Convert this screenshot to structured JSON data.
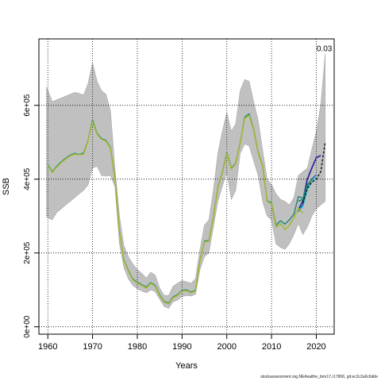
{
  "chart_data": {
    "type": "line",
    "xlabel": "Years",
    "ylabel": "SSB",
    "xlim": [
      1958,
      2024
    ],
    "ylim": [
      -20000,
      780000
    ],
    "x_ticks": [
      1960,
      1970,
      1980,
      1990,
      2000,
      2010,
      2020
    ],
    "y_ticks": [
      {
        "value": 0,
        "label": "0e+00"
      },
      {
        "value": 200000,
        "label": "2e+05"
      },
      {
        "value": 400000,
        "label": "4e+05"
      },
      {
        "value": 600000,
        "label": "6e+05"
      }
    ],
    "grid": true,
    "annotation": {
      "x": 2021.8,
      "y": 755000,
      "text": "0.03"
    },
    "band": {
      "x": [
        1959.7,
        1960,
        1961,
        1962,
        1963,
        1964,
        1965,
        1966,
        1967,
        1968,
        1969,
        1970,
        1971,
        1972,
        1973,
        1974,
        1975,
        1976,
        1977,
        1978,
        1979,
        1980,
        1981,
        1982,
        1983,
        1984,
        1985,
        1986,
        1987,
        1988,
        1989,
        1990,
        1991,
        1992,
        1993,
        1994,
        1995,
        1996,
        1997,
        1998,
        1999,
        2000,
        2001,
        2002,
        2003,
        2004,
        2005,
        2006,
        2007,
        2008,
        2009,
        2010,
        2011,
        2012,
        2013,
        2014,
        2015,
        2016,
        2017,
        2018,
        2019,
        2020,
        2021,
        2022
      ],
      "upper": [
        650000,
        640000,
        610000,
        615000,
        620000,
        625000,
        630000,
        635000,
        632000,
        628000,
        660000,
        715000,
        665000,
        640000,
        630000,
        585000,
        430000,
        300000,
        220000,
        190000,
        170000,
        155000,
        145000,
        132000,
        148000,
        140000,
        105000,
        85000,
        85000,
        110000,
        118000,
        125000,
        122000,
        118000,
        130000,
        210000,
        275000,
        290000,
        370000,
        470000,
        530000,
        580000,
        530000,
        550000,
        640000,
        670000,
        665000,
        610000,
        560000,
        480000,
        400000,
        385000,
        360000,
        345000,
        340000,
        330000,
        350000,
        410000,
        420000,
        430000,
        480000,
        530000,
        600000,
        740000
      ],
      "lower": [
        300000,
        295000,
        290000,
        310000,
        320000,
        330000,
        340000,
        350000,
        360000,
        370000,
        385000,
        430000,
        435000,
        410000,
        408000,
        410000,
        380000,
        225000,
        160000,
        130000,
        112000,
        103000,
        97000,
        92000,
        100000,
        95000,
        75000,
        55000,
        50000,
        68000,
        72000,
        82000,
        85000,
        83000,
        88000,
        155000,
        190000,
        200000,
        270000,
        340000,
        380000,
        420000,
        345000,
        370000,
        470000,
        495000,
        490000,
        450000,
        410000,
        340000,
        300000,
        290000,
        225000,
        215000,
        210000,
        225000,
        250000,
        280000,
        250000,
        270000,
        300000,
        320000,
        330000,
        340000
      ]
    },
    "series": [
      {
        "color": "#a9cbd1",
        "width": 1.4,
        "x": [
          1960,
          1961,
          1962,
          1963,
          1964,
          1965,
          1966,
          1967,
          1968,
          1969,
          1970,
          1971,
          1972,
          1973,
          1974,
          1975,
          1976,
          1977,
          1978,
          1979,
          1980,
          1981,
          1982,
          1983,
          1984,
          1985,
          1986,
          1987,
          1988,
          1989,
          1990,
          1991,
          1992,
          1993,
          1994,
          1995,
          1996,
          1997,
          1998,
          1999,
          2000,
          2001,
          2002,
          2003,
          2004,
          2005,
          2006,
          2007,
          2008,
          2009,
          2010,
          2011,
          2012,
          2013,
          2014,
          2015,
          2016,
          2017
        ],
        "y": [
          443000,
          423000,
          438000,
          450000,
          458000,
          466000,
          471000,
          470000,
          473000,
          510000,
          562000,
          528000,
          512000,
          507000,
          488000,
          405000,
          260000,
          184000,
          155000,
          131000,
          122000,
          115000,
          109000,
          122000,
          114000,
          87000,
          70000,
          65000,
          82000,
          88000,
          100000,
          101000,
          95000,
          100000,
          182000,
          234000,
          236000,
          300000,
          380000,
          420000,
          475000,
          432000,
          445000,
          500000,
          571000,
          578000,
          538000,
          475000,
          440000,
          343000,
          337000,
          277000,
          289000,
          280000,
          292000,
          307000,
          350000,
          345000
        ]
      },
      {
        "color": "#2a7f6e",
        "width": 1.4,
        "x": [
          1960,
          1961,
          1962,
          1963,
          1964,
          1965,
          1966,
          1967,
          1968,
          1969,
          1970,
          1971,
          1972,
          1973,
          1974,
          1975,
          1976,
          1977,
          1978,
          1979,
          1980,
          1981,
          1982,
          1983,
          1984,
          1985,
          1986,
          1987,
          1988,
          1989,
          1990,
          1991,
          1992,
          1993,
          1994,
          1995,
          1996,
          1997,
          1998,
          1999,
          2000,
          2001,
          2002,
          2003,
          2004,
          2005,
          2006,
          2007,
          2008,
          2009,
          2010,
          2011,
          2012,
          2013,
          2014,
          2015,
          2016,
          2017
        ],
        "y": [
          440000,
          420000,
          435000,
          447000,
          457000,
          465000,
          470000,
          467000,
          471000,
          506000,
          560000,
          524000,
          510000,
          505000,
          486000,
          403000,
          259000,
          182000,
          153000,
          129000,
          121000,
          114000,
          107000,
          120000,
          112000,
          86000,
          69000,
          64000,
          81000,
          87000,
          99000,
          100000,
          94000,
          99000,
          180000,
          232000,
          234000,
          298000,
          379000,
          418000,
          473000,
          430000,
          443000,
          499000,
          568000,
          577000,
          536000,
          473000,
          438000,
          342000,
          335000,
          275000,
          287000,
          278000,
          290000,
          305000,
          353000,
          348000
        ]
      },
      {
        "color": "#28e2e5",
        "width": 1.4,
        "x": [
          2016,
          2017,
          2018,
          2019,
          2020
        ],
        "y": [
          323000,
          324000,
          370000,
          392000,
          405000
        ]
      },
      {
        "color": "#2166ac",
        "width": 1.4,
        "x": [
          2016,
          2017,
          2018,
          2019,
          2020
        ],
        "y": [
          312000,
          330000,
          380000,
          400000,
          412000
        ]
      },
      {
        "color": "#2a2a9a",
        "width": 1.8,
        "x": [
          2016,
          2017,
          2018,
          2019,
          2020,
          2021
        ],
        "y": [
          318000,
          340000,
          400000,
          430000,
          458000,
          464000
        ]
      },
      {
        "color": "#1a8a6a",
        "width": 1.6,
        "x": [
          2016,
          2017,
          2018,
          2019
        ],
        "y": [
          340000,
          345000,
          385000,
          398000
        ]
      },
      {
        "color": "#a3b835",
        "width": 1.6,
        "x": [
          1960,
          1961,
          1962,
          1963,
          1964,
          1965,
          1966,
          1967,
          1968,
          1969,
          1970,
          1971,
          1972,
          1973,
          1974,
          1975,
          1976,
          1977,
          1978,
          1979,
          1980,
          1981,
          1982,
          1983,
          1984,
          1985,
          1986,
          1987,
          1988,
          1989,
          1990,
          1991,
          1992,
          1993,
          1994,
          1995,
          1996,
          1997,
          1998,
          1999,
          2000,
          2001,
          2002,
          2003,
          2004,
          2005,
          2006,
          2007,
          2008,
          2009,
          2010,
          2011,
          2012,
          2013,
          2014,
          2015,
          2016,
          2017
        ],
        "y": [
          438000,
          418000,
          433000,
          445000,
          455000,
          463000,
          468000,
          466000,
          468000,
          505000,
          556000,
          522000,
          508000,
          503000,
          484000,
          400000,
          257000,
          180000,
          151000,
          127000,
          119000,
          112000,
          105000,
          118000,
          110000,
          84000,
          67000,
          62000,
          79000,
          85000,
          97000,
          98000,
          92000,
          97000,
          178000,
          230000,
          232000,
          296000,
          377000,
          416000,
          470000,
          428000,
          441000,
          497000,
          565000,
          573000,
          534000,
          471000,
          436000,
          340000,
          333000,
          270000,
          279000,
          263000,
          276000,
          295000,
          322000,
          308000
        ]
      },
      {
        "color": "#222222",
        "width": 1.6,
        "dashed": true,
        "x": [
          2017,
          2018,
          2019,
          2020,
          2021,
          2022
        ],
        "y": [
          335000,
          375000,
          392000,
          400000,
          420000,
          500000
        ]
      }
    ]
  },
  "footer": {
    "text": "stockassessment.org,NEAsaithe_bmr17,r17806, git:ec2c2a0c6dde"
  }
}
